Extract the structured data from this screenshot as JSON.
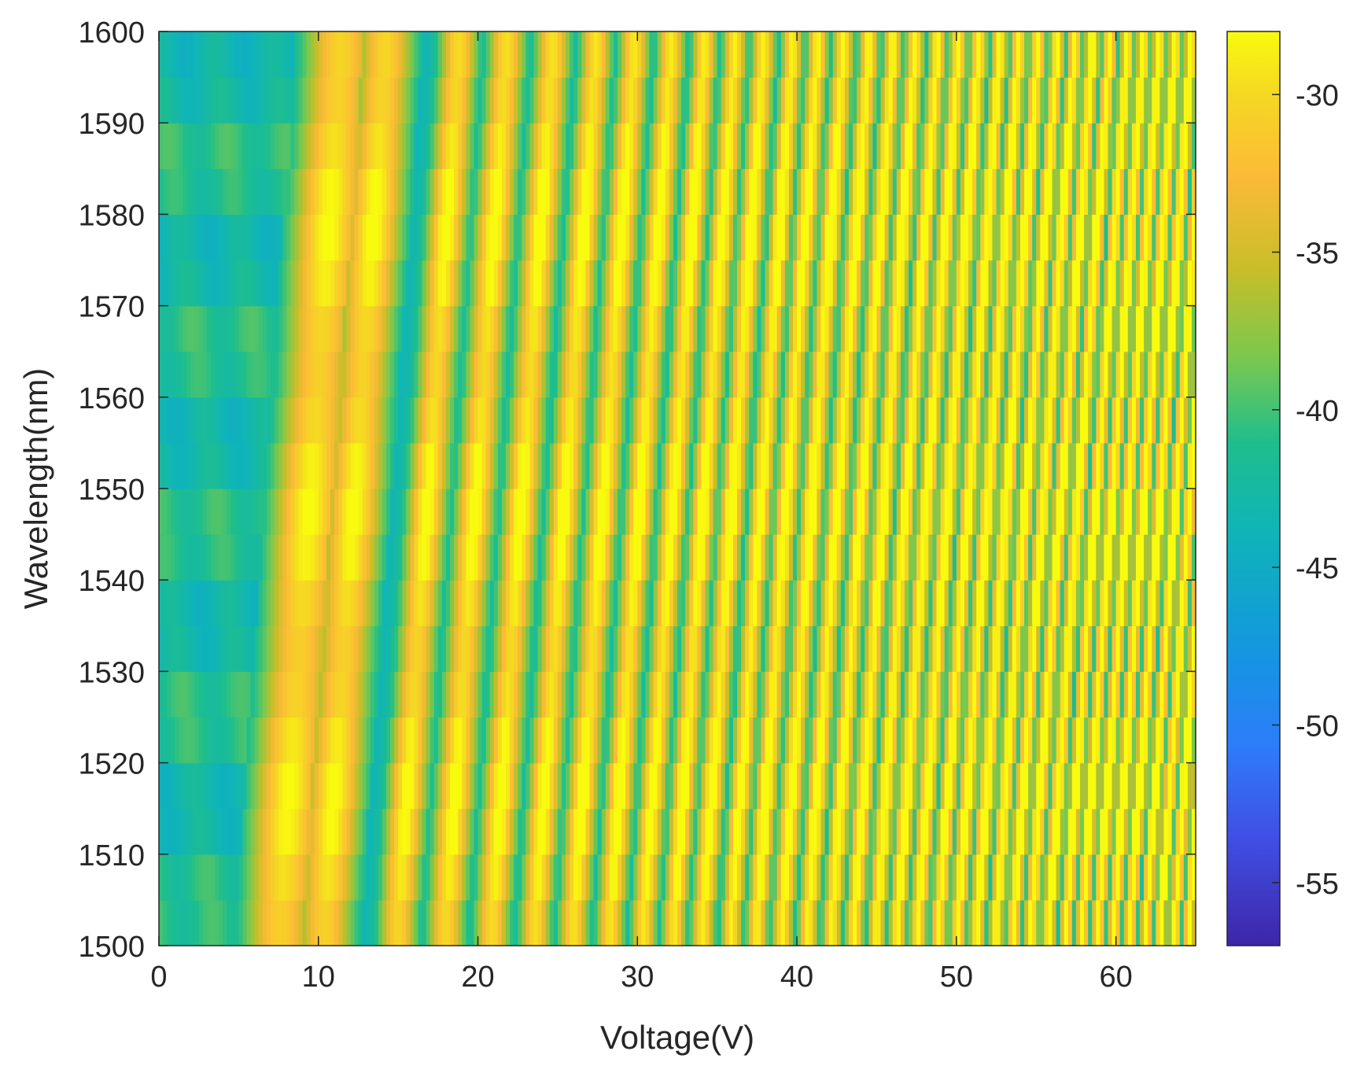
{
  "chart_data": {
    "type": "heatmap",
    "title": "",
    "xlabel": "Voltage(V)",
    "ylabel": "Wavelength(nm)",
    "xlim": [
      0,
      65
    ],
    "ylim": [
      1500,
      1600
    ],
    "x_ticks": [
      "0",
      "10",
      "20",
      "30",
      "40",
      "50",
      "60"
    ],
    "y_ticks": [
      "1500",
      "1510",
      "1520",
      "1530",
      "1540",
      "1550",
      "1560",
      "1570",
      "1580",
      "1590",
      "1600"
    ],
    "colorbar": {
      "range": [
        -57,
        -28
      ],
      "ticks": [
        "-30",
        "-35",
        "-40",
        "-45",
        "-50",
        "-55"
      ],
      "colormap": "parula"
    },
    "grid": false,
    "x_values_V": [
      0,
      1,
      2,
      3,
      4,
      5,
      6,
      7,
      8,
      9,
      10,
      11,
      12,
      13,
      14,
      15,
      16,
      17,
      18,
      19,
      20,
      21,
      22,
      23,
      24,
      25,
      26,
      27,
      28,
      29,
      30,
      31,
      32,
      33,
      34,
      35,
      36,
      37,
      38,
      39,
      40,
      41,
      42,
      43,
      44,
      45,
      46,
      47,
      48,
      49,
      50,
      51,
      52,
      53,
      54,
      55,
      56,
      57,
      58,
      59,
      60,
      61,
      62,
      63,
      64
    ],
    "wavelength_rows_nm": [
      1500,
      1505,
      1510,
      1515,
      1520,
      1525,
      1530,
      1535,
      1540,
      1545,
      1550,
      1555,
      1560,
      1565,
      1570,
      1575,
      1580,
      1585,
      1590,
      1595
    ],
    "peak_voltages_V_at_1500nm": [
      7.5,
      10.3,
      14.9,
      17.9,
      20.8,
      23.5,
      25.9,
      28.2,
      30.3,
      32.2,
      34.0,
      35.8,
      37.4,
      39.0,
      40.6,
      42.1,
      43.5,
      44.9,
      46.2,
      47.5,
      48.8,
      50.0,
      51.2,
      52.4,
      53.5,
      54.6,
      55.7,
      56.8,
      57.8,
      58.8,
      59.8,
      60.8,
      61.8,
      62.7,
      63.6,
      64.5
    ],
    "peak_shift_V_per_nm": 0.04,
    "peak_level_dB": -30,
    "trough_level_dB": -44,
    "low_voltage_level_dB": -42
  }
}
